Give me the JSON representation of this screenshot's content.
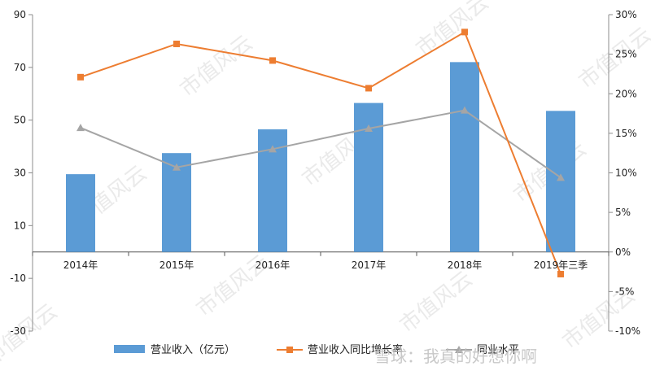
{
  "chart_data": {
    "type": "bar",
    "categories": [
      "2014年",
      "2015年",
      "2016年",
      "2017年",
      "2018年",
      "2019年三季"
    ],
    "left_axis": {
      "ticks": [
        "90",
        "70",
        "50",
        "30",
        "10",
        "-10",
        "-30"
      ],
      "ylim": [
        -30,
        90
      ]
    },
    "right_axis": {
      "ticks": [
        "30%",
        "25%",
        "20%",
        "15%",
        "10%",
        "5%",
        "0%",
        "-5%",
        "-10%"
      ],
      "ylim": [
        -10,
        30
      ]
    },
    "series": [
      {
        "name": "营业收入（亿元）",
        "type": "bar",
        "axis": "left",
        "color": "#5b9bd5",
        "values": [
          29.5,
          37.5,
          46.5,
          56.5,
          72.0,
          53.5
        ]
      },
      {
        "name": "营业收入同比增长率",
        "type": "line",
        "axis": "right",
        "color": "#ed7d31",
        "marker": "square",
        "values": [
          22.1,
          26.3,
          24.2,
          20.7,
          27.8,
          -2.8
        ]
      },
      {
        "name": "同业水平",
        "type": "line",
        "axis": "right",
        "color": "#a5a5a5",
        "marker": "triangle",
        "values": [
          15.7,
          10.7,
          13.0,
          15.6,
          17.9,
          9.4
        ]
      }
    ],
    "legend": "bottom",
    "grid": false
  },
  "watermark": {
    "text": "市值风云",
    "brand": "雪球：我真的好想你啊"
  }
}
